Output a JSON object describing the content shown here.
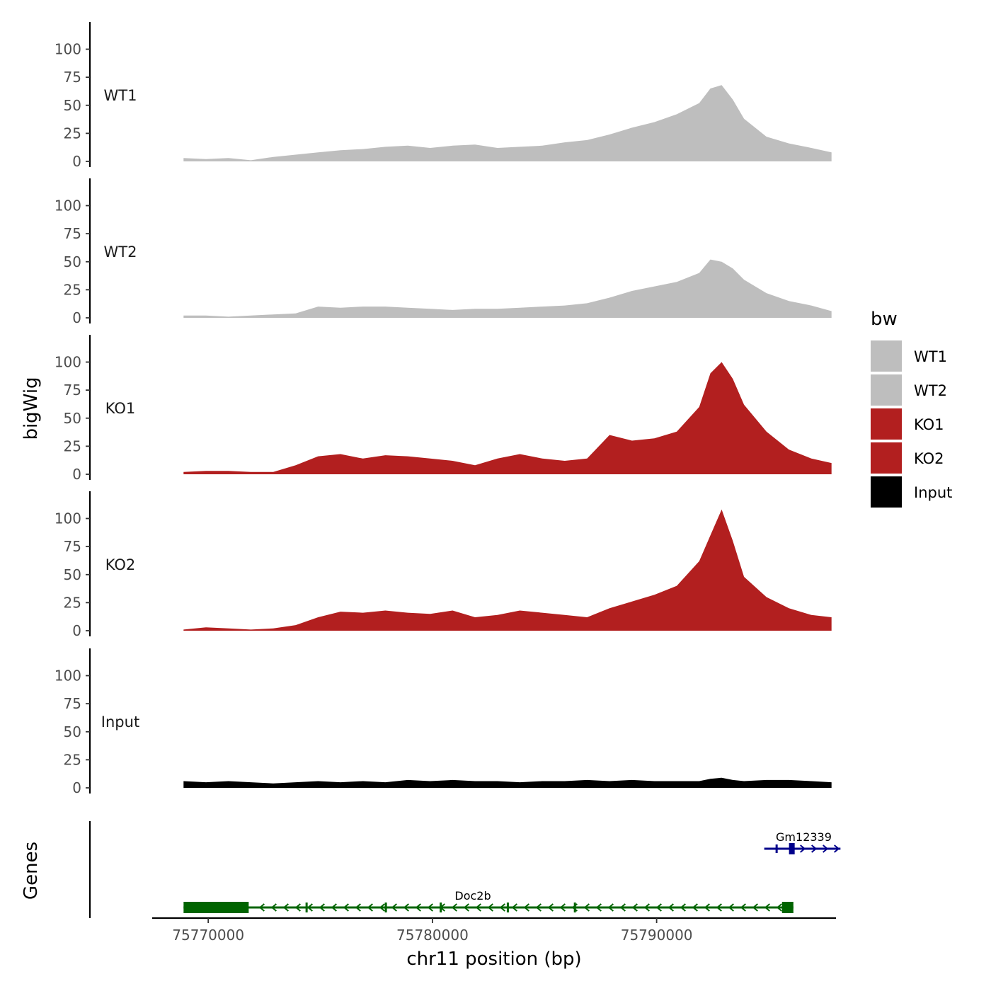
{
  "chart_data": {
    "type": "area",
    "title": "",
    "xlabel": "chr11 position (bp)",
    "ylabel": "bigWig",
    "genes_label": "Genes",
    "xlim": [
      75767500,
      75798000
    ],
    "ylim": [
      0,
      125
    ],
    "x_ticks": [
      {
        "value": 75770000,
        "label": "75770000"
      },
      {
        "value": 75780000,
        "label": "75780000"
      },
      {
        "value": 75790000,
        "label": "75790000"
      }
    ],
    "y_ticks": [
      {
        "value": 0,
        "label": "0"
      },
      {
        "value": 25,
        "label": "25"
      },
      {
        "value": 50,
        "label": "50"
      },
      {
        "value": 75,
        "label": "75"
      },
      {
        "value": 100,
        "label": "100"
      }
    ],
    "legend": {
      "title": "bw",
      "position": "right",
      "entries": [
        {
          "label": "WT1",
          "color": "#bebebe"
        },
        {
          "label": "WT2",
          "color": "#bebebe"
        },
        {
          "label": "KO1",
          "color": "#b21f1f"
        },
        {
          "label": "KO2",
          "color": "#b21f1f"
        },
        {
          "label": "Input",
          "color": "#000000"
        }
      ]
    },
    "x": [
      75768900,
      75769900,
      75770900,
      75771900,
      75772900,
      75773900,
      75774900,
      75775900,
      75776900,
      75777900,
      75778900,
      75779900,
      75780900,
      75781900,
      75782900,
      75783900,
      75784900,
      75785900,
      75786900,
      75787900,
      75788900,
      75789900,
      75790900,
      75791900,
      75792400,
      75792900,
      75793400,
      75793900,
      75794900,
      75795900,
      75796900,
      75797800
    ],
    "series": [
      {
        "name": "WT1",
        "color": "#bebebe",
        "values": [
          3,
          2,
          3,
          1,
          4,
          6,
          8,
          10,
          11,
          13,
          14,
          12,
          14,
          15,
          12,
          13,
          14,
          17,
          19,
          24,
          30,
          35,
          42,
          52,
          65,
          68,
          55,
          38,
          22,
          16,
          12,
          8
        ]
      },
      {
        "name": "WT2",
        "color": "#bebebe",
        "values": [
          2,
          2,
          1,
          2,
          3,
          4,
          10,
          9,
          10,
          10,
          9,
          8,
          7,
          8,
          8,
          9,
          10,
          11,
          13,
          18,
          24,
          28,
          32,
          40,
          52,
          50,
          44,
          34,
          22,
          15,
          11,
          6
        ]
      },
      {
        "name": "KO1",
        "color": "#b21f1f",
        "values": [
          2,
          3,
          3,
          2,
          2,
          8,
          16,
          18,
          14,
          17,
          16,
          14,
          12,
          8,
          14,
          18,
          14,
          12,
          14,
          35,
          30,
          32,
          38,
          60,
          90,
          100,
          85,
          62,
          38,
          22,
          14,
          10
        ]
      },
      {
        "name": "KO2",
        "color": "#b21f1f",
        "values": [
          1,
          3,
          2,
          1,
          2,
          5,
          12,
          17,
          16,
          18,
          16,
          15,
          18,
          12,
          14,
          18,
          16,
          14,
          12,
          20,
          26,
          32,
          40,
          62,
          85,
          108,
          80,
          48,
          30,
          20,
          14,
          12
        ]
      },
      {
        "name": "Input",
        "color": "#000000",
        "values": [
          6,
          5,
          6,
          5,
          4,
          5,
          6,
          5,
          6,
          5,
          7,
          6,
          7,
          6,
          6,
          5,
          6,
          6,
          7,
          6,
          7,
          6,
          6,
          6,
          8,
          9,
          7,
          6,
          7,
          7,
          6,
          5
        ]
      }
    ],
    "genes": [
      {
        "name": "Gm12339",
        "color": "#00008b",
        "strand": "+",
        "start": 75794800,
        "end": 75798200
      },
      {
        "name": "Doc2b",
        "color": "#006400",
        "strand": "-",
        "start": 75768900,
        "end": 75796100
      }
    ]
  }
}
